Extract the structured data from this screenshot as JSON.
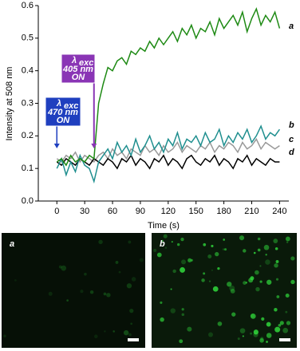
{
  "chart_data": {
    "type": "line",
    "y_label": "Intensity at 508 nm",
    "x_label": "Time (s)",
    "x": [
      0,
      5,
      10,
      15,
      20,
      25,
      30,
      35,
      40,
      45,
      50,
      55,
      60,
      65,
      70,
      75,
      80,
      85,
      90,
      95,
      100,
      105,
      110,
      115,
      120,
      125,
      130,
      135,
      140,
      145,
      150,
      155,
      160,
      165,
      170,
      175,
      180,
      185,
      190,
      195,
      200,
      205,
      210,
      215,
      220,
      225,
      230,
      235,
      240
    ],
    "series": [
      {
        "name": "a",
        "color": "#1e8a14",
        "values": [
          0.12,
          0.13,
          0.11,
          0.14,
          0.12,
          0.13,
          0.12,
          0.14,
          0.13,
          0.3,
          0.36,
          0.41,
          0.4,
          0.43,
          0.44,
          0.42,
          0.46,
          0.45,
          0.47,
          0.46,
          0.49,
          0.47,
          0.5,
          0.48,
          0.5,
          0.52,
          0.49,
          0.53,
          0.51,
          0.54,
          0.5,
          0.53,
          0.52,
          0.55,
          0.51,
          0.56,
          0.53,
          0.55,
          0.57,
          0.54,
          0.58,
          0.52,
          0.56,
          0.59,
          0.54,
          0.57,
          0.55,
          0.58,
          0.53
        ]
      },
      {
        "name": "b",
        "color": "#1f8f8f",
        "values": [
          0.1,
          0.13,
          0.08,
          0.12,
          0.09,
          0.14,
          0.11,
          0.1,
          0.06,
          0.12,
          0.14,
          0.16,
          0.13,
          0.18,
          0.15,
          0.17,
          0.14,
          0.19,
          0.15,
          0.17,
          0.2,
          0.16,
          0.18,
          0.15,
          0.19,
          0.17,
          0.21,
          0.16,
          0.19,
          0.18,
          0.2,
          0.17,
          0.21,
          0.18,
          0.19,
          0.22,
          0.17,
          0.2,
          0.18,
          0.21,
          0.19,
          0.22,
          0.18,
          0.2,
          0.23,
          0.19,
          0.21,
          0.2,
          0.22
        ]
      },
      {
        "name": "c",
        "color": "#999999",
        "values": [
          0.13,
          0.12,
          0.14,
          0.13,
          0.15,
          0.12,
          0.14,
          0.13,
          0.12,
          0.14,
          0.15,
          0.13,
          0.16,
          0.14,
          0.15,
          0.13,
          0.16,
          0.15,
          0.14,
          0.17,
          0.15,
          0.16,
          0.14,
          0.17,
          0.15,
          0.16,
          0.18,
          0.15,
          0.17,
          0.16,
          0.15,
          0.17,
          0.16,
          0.18,
          0.15,
          0.17,
          0.16,
          0.18,
          0.17,
          0.15,
          0.18,
          0.16,
          0.17,
          0.19,
          0.16,
          0.18,
          0.17,
          0.16,
          0.17
        ]
      },
      {
        "name": "d",
        "color": "#000000",
        "values": [
          0.12,
          0.11,
          0.13,
          0.12,
          0.11,
          0.13,
          0.12,
          0.11,
          0.13,
          0.12,
          0.11,
          0.13,
          0.12,
          0.1,
          0.13,
          0.12,
          0.14,
          0.11,
          0.13,
          0.12,
          0.1,
          0.13,
          0.12,
          0.14,
          0.11,
          0.13,
          0.12,
          0.1,
          0.13,
          0.14,
          0.12,
          0.11,
          0.13,
          0.12,
          0.14,
          0.11,
          0.13,
          0.12,
          0.1,
          0.13,
          0.12,
          0.14,
          0.11,
          0.13,
          0.12,
          0.11,
          0.13,
          0.12,
          0.12
        ]
      }
    ],
    "xlim": [
      -20,
      250
    ],
    "ylim": [
      0,
      0.6
    ],
    "xticks": [
      0,
      30,
      60,
      90,
      120,
      150,
      180,
      210,
      240
    ],
    "yticks": [
      {
        "value": 0,
        "label": "0.0"
      },
      0.1,
      0.2,
      0.3,
      0.4,
      0.5,
      0.6
    ],
    "annotations": [
      {
        "symbol": "λ",
        "sub": "exc",
        "lines": [
          "470 nm",
          "ON"
        ],
        "x": 0,
        "color": "#1f3fbf"
      },
      {
        "symbol": "λ",
        "sub": "exc",
        "lines": [
          "405 nm",
          "ON"
        ],
        "x": 40,
        "color": "#8a35b5"
      }
    ]
  },
  "images": [
    {
      "label": "a"
    },
    {
      "label": "b"
    }
  ]
}
